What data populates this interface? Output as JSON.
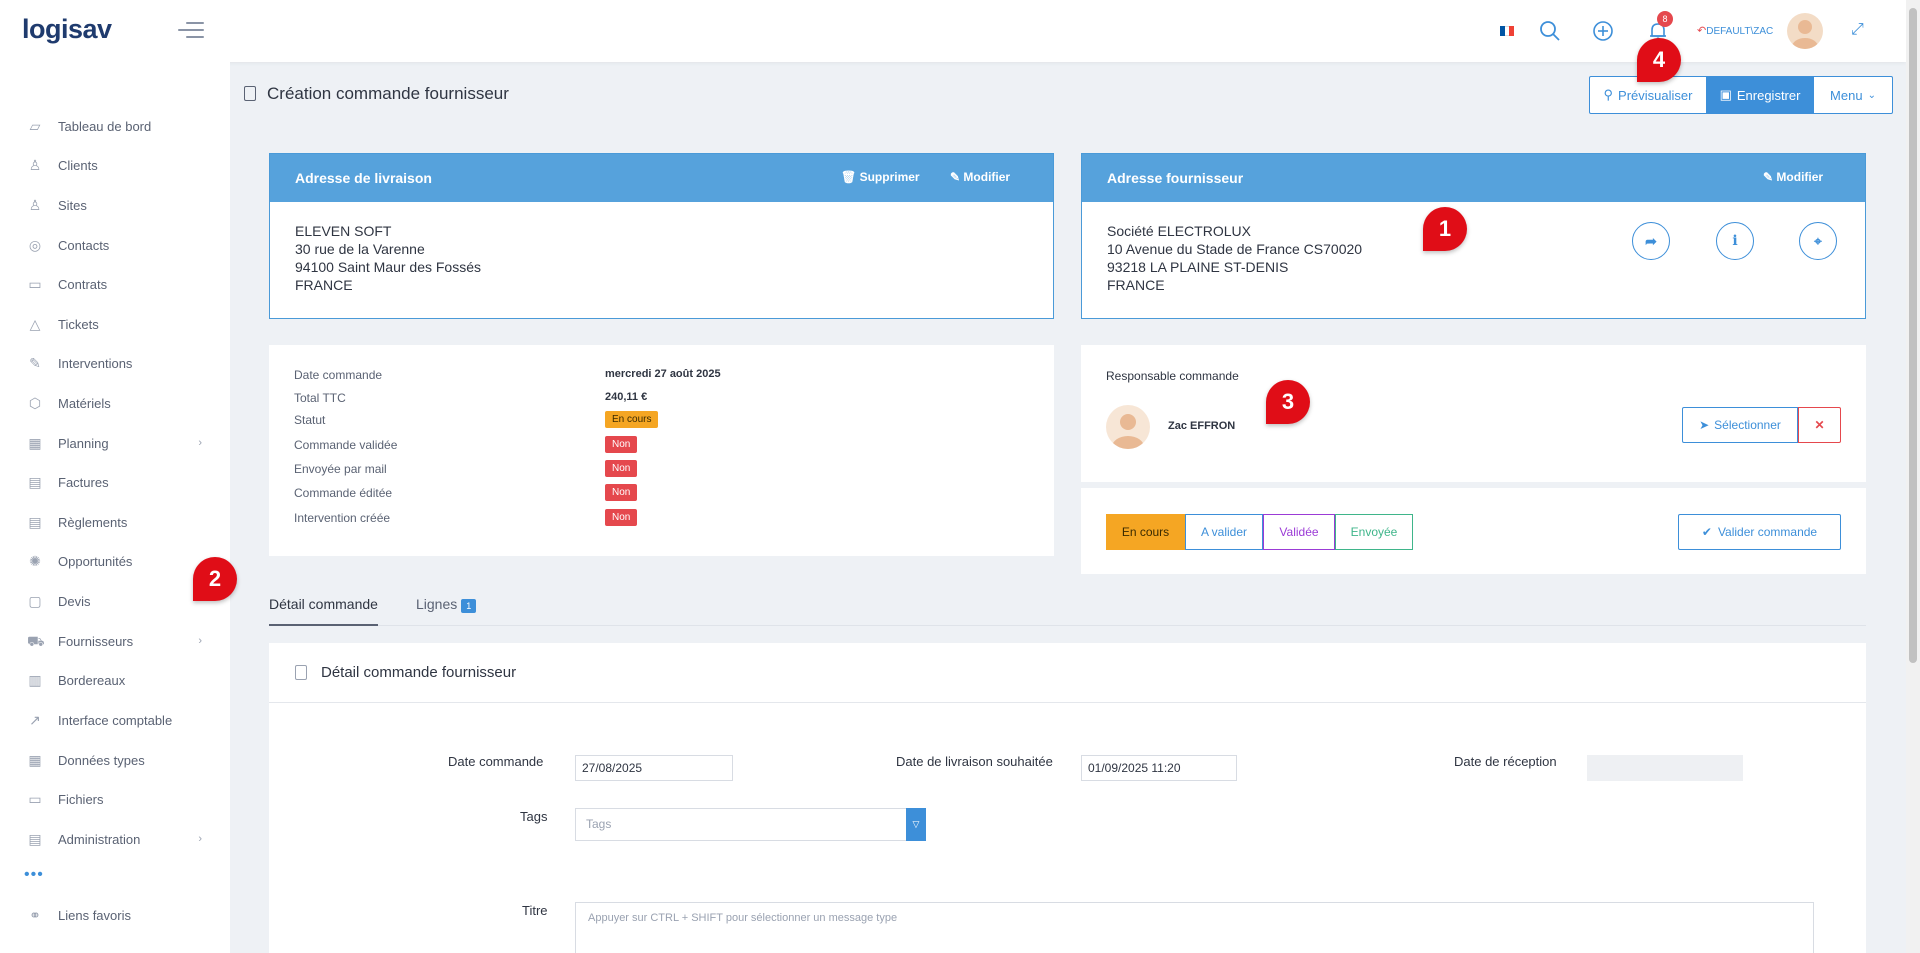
{
  "app": {
    "logo": "logisav",
    "logo_o": "O"
  },
  "topbar": {
    "notification_count": "8",
    "user": "DEFAULT\\ZAC",
    "flag_colors": [
      "#0055a4",
      "#ffffff",
      "#ef4135"
    ]
  },
  "sidebar": {
    "items": [
      {
        "label": "Tableau de bord",
        "icon": "dashboard-icon",
        "glyph": "▱"
      },
      {
        "label": "Clients",
        "icon": "clients-icon",
        "glyph": "♙"
      },
      {
        "label": "Sites",
        "icon": "sites-icon",
        "glyph": "♙"
      },
      {
        "label": "Contacts",
        "icon": "contacts-icon",
        "glyph": "◎"
      },
      {
        "label": "Contrats",
        "icon": "contracts-icon",
        "glyph": "▭"
      },
      {
        "label": "Tickets",
        "icon": "tickets-icon",
        "glyph": "△"
      },
      {
        "label": "Interventions",
        "icon": "wrench-icon",
        "glyph": "✎"
      },
      {
        "label": "Matériels",
        "icon": "box-icon",
        "glyph": "⬡"
      },
      {
        "label": "Planning",
        "icon": "calendar-icon",
        "glyph": "▦",
        "chevron": "›"
      },
      {
        "label": "Factures",
        "icon": "invoice-icon",
        "glyph": "▤"
      },
      {
        "label": "Règlements",
        "icon": "payments-icon",
        "glyph": "▤"
      },
      {
        "label": "Opportunités",
        "icon": "opportunity-icon",
        "glyph": "✺"
      },
      {
        "label": "Devis",
        "icon": "quote-icon",
        "glyph": "▢"
      },
      {
        "label": "Fournisseurs",
        "icon": "truck-icon",
        "glyph": "⛟",
        "chevron": "›"
      },
      {
        "label": "Bordereaux",
        "icon": "bordereaux-icon",
        "glyph": "▥"
      },
      {
        "label": "Interface comptable",
        "icon": "external-link-icon",
        "glyph": "↗"
      },
      {
        "label": "Données types",
        "icon": "grid-icon",
        "glyph": "▦"
      },
      {
        "label": "Fichiers",
        "icon": "files-icon",
        "glyph": "▭"
      },
      {
        "label": "Administration",
        "icon": "admin-icon",
        "glyph": "▤",
        "chevron": "›"
      }
    ],
    "dots": "•••",
    "favorites": {
      "label": "Liens favoris",
      "icon": "link-icon",
      "glyph": "⚭"
    }
  },
  "header": {
    "title": "Création commande fournisseur",
    "buttons": {
      "preview": "Prévisualiser",
      "save": "Enregistrer",
      "menu": "Menu"
    }
  },
  "delivery": {
    "title": "Adresse de livraison",
    "delete": "Supprimer",
    "edit": "Modifier",
    "lines": [
      "ELEVEN SOFT",
      "30 rue de la Varenne",
      "94100 Saint Maur des Fossés",
      "FRANCE"
    ]
  },
  "supplier": {
    "title": "Adresse fournisseur",
    "edit": "Modifier",
    "lines": [
      "Société ELECTROLUX",
      "10 Avenue du Stade de France CS70020",
      "93218 LA PLAINE ST-DENIS",
      "FRANCE"
    ]
  },
  "summary": {
    "rows": [
      {
        "label": "Date commande",
        "value": "mercredi 27 août 2025"
      },
      {
        "label": "Total TTC",
        "value": "240,11 €"
      },
      {
        "label": "Statut",
        "value": "En cours"
      },
      {
        "label": "Commande validée",
        "value": "Non"
      },
      {
        "label": "Envoyée par mail",
        "value": "Non"
      },
      {
        "label": "Commande éditée",
        "value": "Non"
      },
      {
        "label": "Intervention créée",
        "value": "Non"
      }
    ]
  },
  "responsible": {
    "title": "Responsable commande",
    "name": "Zac EFFRON",
    "select": "Sélectionner",
    "remove": "✕"
  },
  "workflow": {
    "states": [
      {
        "label": "En cours",
        "color": "#f5a623"
      },
      {
        "label": "A valider",
        "color": "#3d8fd9"
      },
      {
        "label": "Validée",
        "color": "#9b3bd6"
      },
      {
        "label": "Envoyée",
        "color": "#3fb58a"
      }
    ],
    "validate": "Valider commande"
  },
  "tabs": [
    {
      "label": "Détail commande"
    },
    {
      "label": "Lignes",
      "count": "1"
    }
  ],
  "detail": {
    "title": "Détail commande fournisseur",
    "order_date_label": "Date commande",
    "order_date": "27/08/2025",
    "delivery_date_label": "Date de livraison souhaitée",
    "delivery_date": "01/09/2025 11:20",
    "reception_label": "Date de réception",
    "reception_value": "",
    "tags_label": "Tags",
    "tags_placeholder": "Tags",
    "title_label": "Titre",
    "title_placeholder": "Appuyer sur CTRL + SHIFT pour sélectionner un message type"
  },
  "steps": [
    "1",
    "2",
    "3",
    "4"
  ]
}
